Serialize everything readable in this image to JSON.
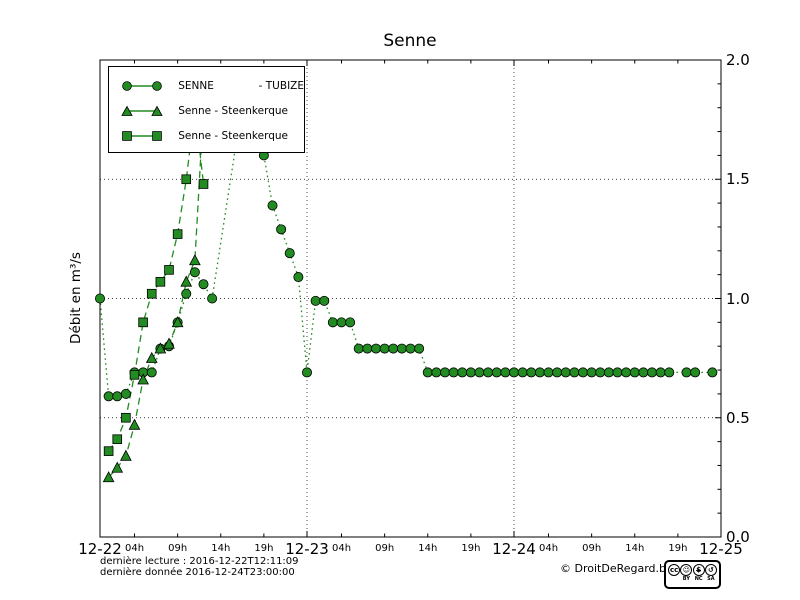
{
  "title": "Senne",
  "y_axis_label": "Débit en m³/s",
  "legend": [
    {
      "label": "SENNE",
      "label2": "- TUBIZE",
      "marker": "circle"
    },
    {
      "label": "Senne - Steenkerque",
      "label2": "",
      "marker": "triangle"
    },
    {
      "label": "Senne - Steenkerque",
      "label2": "",
      "marker": "square"
    }
  ],
  "footer": {
    "line1": "dernière lecture : 2016-12-22T12:11:09",
    "line2": "dernière donnée  2016-12-24T23:00:00",
    "copyright": "© DroitDeRegard.be",
    "license_icons": [
      "cc",
      "person",
      "no-dollar",
      "share-alike"
    ],
    "license_sublabels": [
      "BY",
      "NC",
      "SA"
    ]
  },
  "chart_data": {
    "type": "line",
    "title": "Senne",
    "ylabel": "Débit en m³/s",
    "ylim": [
      0,
      2
    ],
    "y_tick_labels": [
      "0.0",
      "0.5",
      "1.0",
      "1.5",
      "2.0"
    ],
    "y_minor_step": 0.1,
    "x_unit": "hours since 2016-12-22 00:00",
    "x_total_hours": 72,
    "x_day_labels": [
      "12-22",
      "12-23",
      "12-24",
      "12-25"
    ],
    "x_hour_labels": [
      "04h",
      "09h",
      "14h",
      "19h"
    ],
    "x_hour_label_offsets": [
      4,
      9,
      14,
      19
    ],
    "grid": {
      "horizontal_at": [
        0.5,
        1.0,
        1.5
      ],
      "vertical_at_hours": [
        24,
        48
      ],
      "style": "dotted"
    },
    "color": "#228B22",
    "marker_edge_color": "#000000",
    "legend_position": "upper-left",
    "series": [
      {
        "name": "SENNE - TUBIZE",
        "marker": "circle",
        "linestyle": "dotted",
        "points": [
          [
            0,
            1.0
          ],
          [
            1,
            0.59
          ],
          [
            2,
            0.59
          ],
          [
            3,
            0.6
          ],
          [
            4,
            0.69
          ],
          [
            5,
            0.69
          ],
          [
            6,
            0.69
          ],
          [
            7,
            0.79
          ],
          [
            8,
            0.8
          ],
          [
            9,
            0.9
          ],
          [
            10,
            1.02
          ],
          [
            11,
            1.11
          ],
          [
            12,
            1.06
          ],
          [
            13,
            1.0
          ],
          [
            16,
            1.7
          ],
          [
            17,
            1.82
          ],
          [
            18,
            1.73
          ],
          [
            19,
            1.6
          ],
          [
            20,
            1.39
          ],
          [
            21,
            1.29
          ],
          [
            22,
            1.19
          ],
          [
            23,
            1.09
          ],
          [
            24,
            0.69
          ],
          [
            25,
            0.99
          ],
          [
            26,
            0.99
          ],
          [
            27,
            0.9
          ],
          [
            28,
            0.9
          ],
          [
            29,
            0.9
          ],
          [
            30,
            0.79
          ],
          [
            31,
            0.79
          ],
          [
            32,
            0.79
          ],
          [
            33,
            0.79
          ],
          [
            34,
            0.79
          ],
          [
            35,
            0.79
          ],
          [
            36,
            0.79
          ],
          [
            37,
            0.79
          ],
          [
            38,
            0.69
          ],
          [
            39,
            0.69
          ],
          [
            40,
            0.69
          ],
          [
            41,
            0.69
          ],
          [
            42,
            0.69
          ],
          [
            43,
            0.69
          ],
          [
            44,
            0.69
          ],
          [
            45,
            0.69
          ],
          [
            46,
            0.69
          ],
          [
            47,
            0.69
          ],
          [
            48,
            0.69
          ],
          [
            49,
            0.69
          ],
          [
            50,
            0.69
          ],
          [
            51,
            0.69
          ],
          [
            52,
            0.69
          ],
          [
            53,
            0.69
          ],
          [
            54,
            0.69
          ],
          [
            55,
            0.69
          ],
          [
            56,
            0.69
          ],
          [
            57,
            0.69
          ],
          [
            58,
            0.69
          ],
          [
            59,
            0.69
          ],
          [
            60,
            0.69
          ],
          [
            61,
            0.69
          ],
          [
            62,
            0.69
          ],
          [
            63,
            0.69
          ],
          [
            64,
            0.69
          ],
          [
            65,
            0.69
          ],
          [
            66,
            0.69
          ],
          [
            68,
            0.69
          ],
          [
            69,
            0.69
          ],
          [
            71,
            0.69
          ]
        ]
      },
      {
        "name": "Senne - Steenkerque",
        "marker": "triangle",
        "linestyle": "dashed",
        "points": [
          [
            1,
            0.25
          ],
          [
            2,
            0.29
          ],
          [
            3,
            0.34
          ],
          [
            4,
            0.47
          ],
          [
            5,
            0.66
          ],
          [
            6,
            0.75
          ],
          [
            7,
            0.79
          ],
          [
            8,
            0.81
          ],
          [
            9,
            0.9
          ],
          [
            10,
            1.07
          ],
          [
            11,
            1.16
          ],
          [
            12,
            1.8
          ]
        ]
      },
      {
        "name": "Senne - Steenkerque",
        "marker": "square",
        "linestyle": "dashed",
        "points": [
          [
            1,
            0.36
          ],
          [
            2,
            0.41
          ],
          [
            3,
            0.5
          ],
          [
            4,
            0.68
          ],
          [
            5,
            0.9
          ],
          [
            6,
            1.02
          ],
          [
            7,
            1.07
          ],
          [
            8,
            1.12
          ],
          [
            9,
            1.27
          ],
          [
            10,
            1.5
          ],
          [
            11,
            1.8
          ],
          [
            12,
            1.48
          ]
        ]
      }
    ]
  }
}
